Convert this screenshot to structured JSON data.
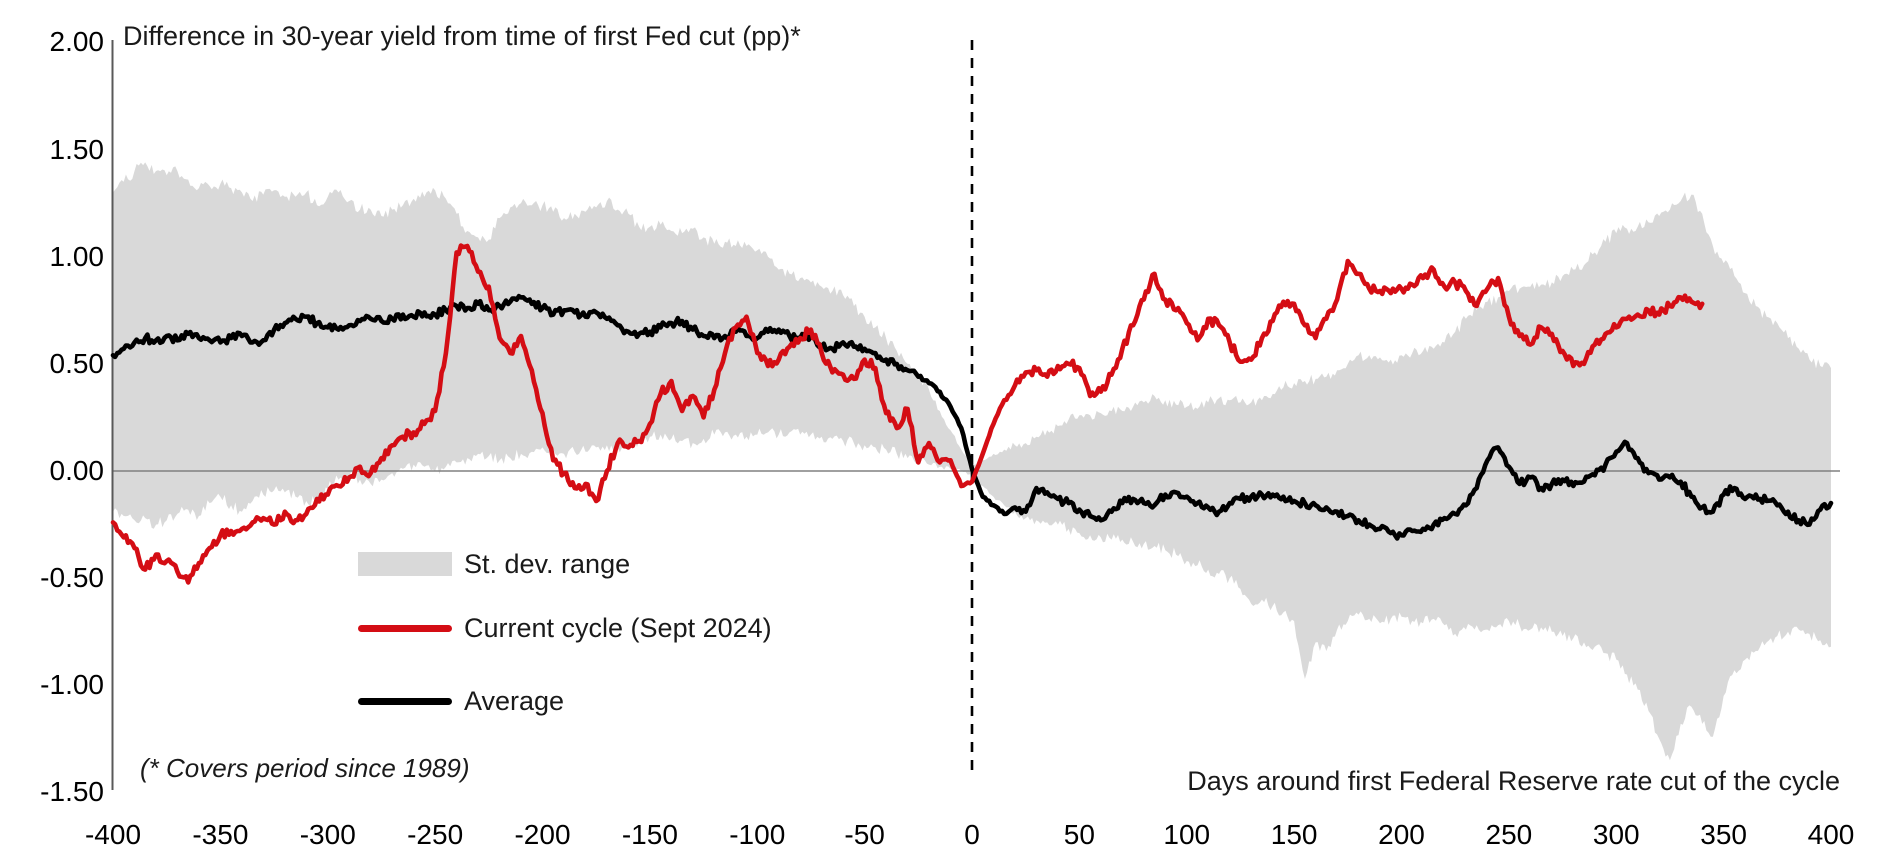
{
  "title": "Difference in 30-year yield from time of first Fed cut (pp)*",
  "footnote": "(* Covers period since 1989)",
  "x_axis_title": "Days around first Federal Reserve rate cut of the cycle",
  "legend": [
    {
      "label": "St. dev. range",
      "type": "band"
    },
    {
      "label": "Current cycle (Sept 2024)",
      "type": "line",
      "series": "current"
    },
    {
      "label": "Average",
      "type": "line",
      "series": "average"
    }
  ],
  "colors": {
    "current": "#d40d14",
    "average": "#000000",
    "band": "#d9d9d9",
    "zero_line": "#808080",
    "axis_line": "#595959",
    "event_line": "#000000",
    "text": "#1a1a1a"
  },
  "chart_data": {
    "type": "line",
    "title": "Difference in 30-year yield from time of first Fed cut (pp)*",
    "xlabel": "Days around first Federal Reserve rate cut of the cycle",
    "ylabel": "Difference in 30-year yield from time of first Fed cut (pp)",
    "xlim": [
      -400,
      400
    ],
    "ylim": [
      -1.5,
      2.0
    ],
    "x_ticks": [
      -400,
      -350,
      -300,
      -250,
      -200,
      -150,
      -100,
      -50,
      0,
      50,
      100,
      150,
      200,
      250,
      300,
      350,
      400
    ],
    "y_ticks": [
      2.0,
      1.5,
      1.0,
      0.5,
      0.0,
      -0.5,
      -1.0,
      -1.5
    ],
    "y_tick_labels": [
      "2.00",
      "1.50",
      "1.00",
      "0.50",
      "0.00",
      "-0.50",
      "-1.00",
      "-1.50"
    ],
    "grid": "horizontal zero line only",
    "event_line_x": 0,
    "legend_position": "inside lower-left",
    "x": [
      -400,
      -395,
      -390,
      -385,
      -380,
      -375,
      -370,
      -365,
      -360,
      -355,
      -350,
      -345,
      -340,
      -335,
      -330,
      -325,
      -320,
      -315,
      -310,
      -305,
      -300,
      -295,
      -290,
      -285,
      -280,
      -275,
      -270,
      -265,
      -260,
      -255,
      -250,
      -245,
      -240,
      -235,
      -230,
      -225,
      -220,
      -215,
      -210,
      -205,
      -200,
      -195,
      -190,
      -185,
      -180,
      -175,
      -170,
      -165,
      -160,
      -155,
      -150,
      -145,
      -140,
      -135,
      -130,
      -125,
      -120,
      -115,
      -110,
      -105,
      -100,
      -95,
      -90,
      -85,
      -80,
      -75,
      -70,
      -65,
      -60,
      -55,
      -50,
      -45,
      -40,
      -35,
      -30,
      -25,
      -20,
      -15,
      -10,
      -5,
      0,
      5,
      10,
      15,
      20,
      25,
      30,
      35,
      40,
      45,
      50,
      55,
      60,
      65,
      70,
      75,
      80,
      85,
      90,
      95,
      100,
      105,
      110,
      115,
      120,
      125,
      130,
      135,
      140,
      145,
      150,
      155,
      160,
      165,
      170,
      175,
      180,
      185,
      190,
      195,
      200,
      205,
      210,
      215,
      220,
      225,
      230,
      235,
      240,
      245,
      250,
      255,
      260,
      265,
      270,
      275,
      280,
      285,
      290,
      295,
      300,
      305,
      310,
      315,
      320,
      325,
      330,
      335,
      340,
      345,
      350,
      355,
      360,
      365,
      370,
      375,
      380,
      385,
      390,
      395,
      400
    ],
    "series": [
      {
        "name": "St. dev. range (upper)",
        "role": "band_upper",
        "values": [
          1.3,
          1.35,
          1.4,
          1.44,
          1.4,
          1.38,
          1.4,
          1.36,
          1.32,
          1.33,
          1.34,
          1.32,
          1.3,
          1.26,
          1.29,
          1.31,
          1.28,
          1.28,
          1.3,
          1.24,
          1.28,
          1.3,
          1.26,
          1.22,
          1.22,
          1.19,
          1.22,
          1.24,
          1.27,
          1.28,
          1.31,
          1.27,
          1.2,
          1.12,
          1.09,
          1.08,
          1.18,
          1.23,
          1.25,
          1.24,
          1.24,
          1.21,
          1.18,
          1.2,
          1.21,
          1.23,
          1.26,
          1.22,
          1.2,
          1.14,
          1.14,
          1.15,
          1.12,
          1.11,
          1.13,
          1.09,
          1.06,
          1.07,
          1.05,
          1.05,
          1.03,
          1.0,
          0.94,
          0.92,
          0.9,
          0.88,
          0.86,
          0.84,
          0.82,
          0.77,
          0.72,
          0.67,
          0.62,
          0.56,
          0.5,
          0.44,
          0.38,
          0.28,
          0.19,
          0.1,
          0.02,
          0.05,
          0.08,
          0.1,
          0.12,
          0.13,
          0.16,
          0.19,
          0.21,
          0.24,
          0.26,
          0.26,
          0.27,
          0.28,
          0.28,
          0.3,
          0.32,
          0.35,
          0.33,
          0.31,
          0.3,
          0.29,
          0.32,
          0.34,
          0.33,
          0.32,
          0.32,
          0.33,
          0.36,
          0.39,
          0.41,
          0.42,
          0.43,
          0.44,
          0.47,
          0.5,
          0.54,
          0.54,
          0.53,
          0.52,
          0.54,
          0.55,
          0.56,
          0.57,
          0.6,
          0.65,
          0.71,
          0.75,
          0.79,
          0.81,
          0.84,
          0.85,
          0.86,
          0.87,
          0.88,
          0.91,
          0.94,
          0.96,
          1.02,
          1.07,
          1.11,
          1.13,
          1.14,
          1.16,
          1.19,
          1.22,
          1.26,
          1.29,
          1.2,
          1.05,
          0.97,
          0.91,
          0.83,
          0.77,
          0.72,
          0.69,
          0.62,
          0.57,
          0.52,
          0.49,
          0.48
        ]
      },
      {
        "name": "St. dev. range (lower)",
        "role": "band_lower",
        "values": [
          -0.19,
          -0.21,
          -0.23,
          -0.22,
          -0.25,
          -0.23,
          -0.2,
          -0.18,
          -0.21,
          -0.15,
          -0.12,
          -0.16,
          -0.19,
          -0.14,
          -0.11,
          -0.09,
          -0.1,
          -0.12,
          -0.14,
          -0.13,
          -0.08,
          -0.04,
          -0.02,
          -0.04,
          -0.06,
          -0.04,
          -0.01,
          0.01,
          0.03,
          0.02,
          0.0,
          0.02,
          0.04,
          0.06,
          0.08,
          0.07,
          0.05,
          0.06,
          0.08,
          0.09,
          0.11,
          0.1,
          0.08,
          0.09,
          0.09,
          0.11,
          0.12,
          0.11,
          0.12,
          0.14,
          0.16,
          0.17,
          0.15,
          0.14,
          0.13,
          0.15,
          0.17,
          0.18,
          0.17,
          0.16,
          0.17,
          0.18,
          0.17,
          0.18,
          0.17,
          0.17,
          0.16,
          0.15,
          0.14,
          0.13,
          0.12,
          0.11,
          0.1,
          0.08,
          0.06,
          0.05,
          0.03,
          0.02,
          0.01,
          0.0,
          -0.02,
          -0.07,
          -0.12,
          -0.16,
          -0.19,
          -0.22,
          -0.23,
          -0.24,
          -0.25,
          -0.27,
          -0.29,
          -0.3,
          -0.31,
          -0.32,
          -0.32,
          -0.33,
          -0.34,
          -0.35,
          -0.37,
          -0.39,
          -0.42,
          -0.44,
          -0.46,
          -0.48,
          -0.5,
          -0.55,
          -0.62,
          -0.6,
          -0.63,
          -0.66,
          -0.7,
          -0.97,
          -0.8,
          -0.84,
          -0.74,
          -0.7,
          -0.67,
          -0.69,
          -0.71,
          -0.69,
          -0.68,
          -0.7,
          -0.71,
          -0.69,
          -0.72,
          -0.76,
          -0.74,
          -0.72,
          -0.74,
          -0.72,
          -0.7,
          -0.72,
          -0.74,
          -0.73,
          -0.75,
          -0.77,
          -0.78,
          -0.8,
          -0.82,
          -0.85,
          -0.88,
          -0.95,
          -1.02,
          -1.12,
          -1.25,
          -1.35,
          -1.18,
          -1.1,
          -1.18,
          -1.24,
          -1.05,
          -0.93,
          -0.88,
          -0.84,
          -0.8,
          -0.77,
          -0.75,
          -0.74,
          -0.76,
          -0.79,
          -0.82
        ]
      },
      {
        "name": "Current cycle (Sept 2024)",
        "role": "current",
        "values": [
          -0.24,
          -0.31,
          -0.36,
          -0.46,
          -0.39,
          -0.42,
          -0.47,
          -0.52,
          -0.43,
          -0.36,
          -0.3,
          -0.28,
          -0.27,
          -0.24,
          -0.22,
          -0.25,
          -0.19,
          -0.23,
          -0.2,
          -0.13,
          -0.11,
          -0.07,
          -0.03,
          0.02,
          -0.01,
          0.06,
          0.12,
          0.16,
          0.18,
          0.22,
          0.28,
          0.55,
          1.02,
          1.05,
          0.93,
          0.86,
          0.62,
          0.55,
          0.63,
          0.47,
          0.27,
          0.05,
          -0.01,
          -0.08,
          -0.06,
          -0.14,
          0.0,
          0.13,
          0.11,
          0.14,
          0.22,
          0.36,
          0.42,
          0.28,
          0.35,
          0.25,
          0.38,
          0.55,
          0.67,
          0.72,
          0.55,
          0.49,
          0.52,
          0.58,
          0.62,
          0.66,
          0.55,
          0.46,
          0.45,
          0.43,
          0.52,
          0.48,
          0.27,
          0.2,
          0.29,
          0.04,
          0.13,
          0.04,
          0.05,
          -0.07,
          -0.05,
          0.08,
          0.22,
          0.33,
          0.4,
          0.46,
          0.47,
          0.44,
          0.49,
          0.5,
          0.48,
          0.35,
          0.37,
          0.45,
          0.57,
          0.68,
          0.8,
          0.92,
          0.8,
          0.75,
          0.69,
          0.61,
          0.71,
          0.68,
          0.6,
          0.51,
          0.52,
          0.62,
          0.7,
          0.79,
          0.78,
          0.68,
          0.62,
          0.71,
          0.8,
          0.98,
          0.92,
          0.85,
          0.84,
          0.83,
          0.85,
          0.87,
          0.9,
          0.94,
          0.86,
          0.88,
          0.84,
          0.77,
          0.85,
          0.9,
          0.72,
          0.63,
          0.59,
          0.67,
          0.64,
          0.56,
          0.49,
          0.5,
          0.59,
          0.64,
          0.67,
          0.71,
          0.73,
          0.75,
          0.73,
          0.77,
          0.81,
          0.79,
          0.78,
          null,
          null,
          null,
          null,
          null,
          null,
          null,
          null,
          null,
          null,
          null,
          null
        ]
      },
      {
        "name": "Average",
        "role": "average",
        "values": [
          0.54,
          0.57,
          0.6,
          0.62,
          0.61,
          0.63,
          0.61,
          0.64,
          0.62,
          0.61,
          0.6,
          0.62,
          0.63,
          0.6,
          0.61,
          0.66,
          0.69,
          0.71,
          0.72,
          0.69,
          0.67,
          0.66,
          0.68,
          0.7,
          0.71,
          0.7,
          0.71,
          0.73,
          0.72,
          0.74,
          0.73,
          0.75,
          0.77,
          0.76,
          0.78,
          0.75,
          0.77,
          0.79,
          0.81,
          0.78,
          0.76,
          0.73,
          0.75,
          0.74,
          0.72,
          0.74,
          0.71,
          0.68,
          0.65,
          0.64,
          0.65,
          0.67,
          0.69,
          0.7,
          0.66,
          0.63,
          0.62,
          0.63,
          0.65,
          0.63,
          0.62,
          0.65,
          0.66,
          0.63,
          0.62,
          0.63,
          0.58,
          0.57,
          0.6,
          0.58,
          0.57,
          0.55,
          0.52,
          0.5,
          0.47,
          0.44,
          0.41,
          0.37,
          0.3,
          0.2,
          0.01,
          -0.12,
          -0.16,
          -0.2,
          -0.17,
          -0.19,
          -0.08,
          -0.1,
          -0.13,
          -0.15,
          -0.18,
          -0.21,
          -0.23,
          -0.19,
          -0.15,
          -0.13,
          -0.15,
          -0.16,
          -0.11,
          -0.1,
          -0.12,
          -0.15,
          -0.17,
          -0.19,
          -0.15,
          -0.13,
          -0.12,
          -0.11,
          -0.11,
          -0.12,
          -0.14,
          -0.15,
          -0.16,
          -0.17,
          -0.19,
          -0.21,
          -0.23,
          -0.25,
          -0.27,
          -0.29,
          -0.3,
          -0.28,
          -0.27,
          -0.25,
          -0.22,
          -0.2,
          -0.16,
          -0.08,
          0.05,
          0.11,
          0.02,
          -0.06,
          -0.03,
          -0.08,
          -0.06,
          -0.04,
          -0.07,
          -0.05,
          -0.02,
          0.03,
          0.09,
          0.13,
          0.06,
          -0.01,
          -0.04,
          -0.03,
          -0.05,
          -0.12,
          -0.17,
          -0.19,
          -0.11,
          -0.08,
          -0.13,
          -0.11,
          -0.14,
          -0.16,
          -0.19,
          -0.23,
          -0.25,
          -0.18,
          -0.15
        ]
      }
    ]
  }
}
